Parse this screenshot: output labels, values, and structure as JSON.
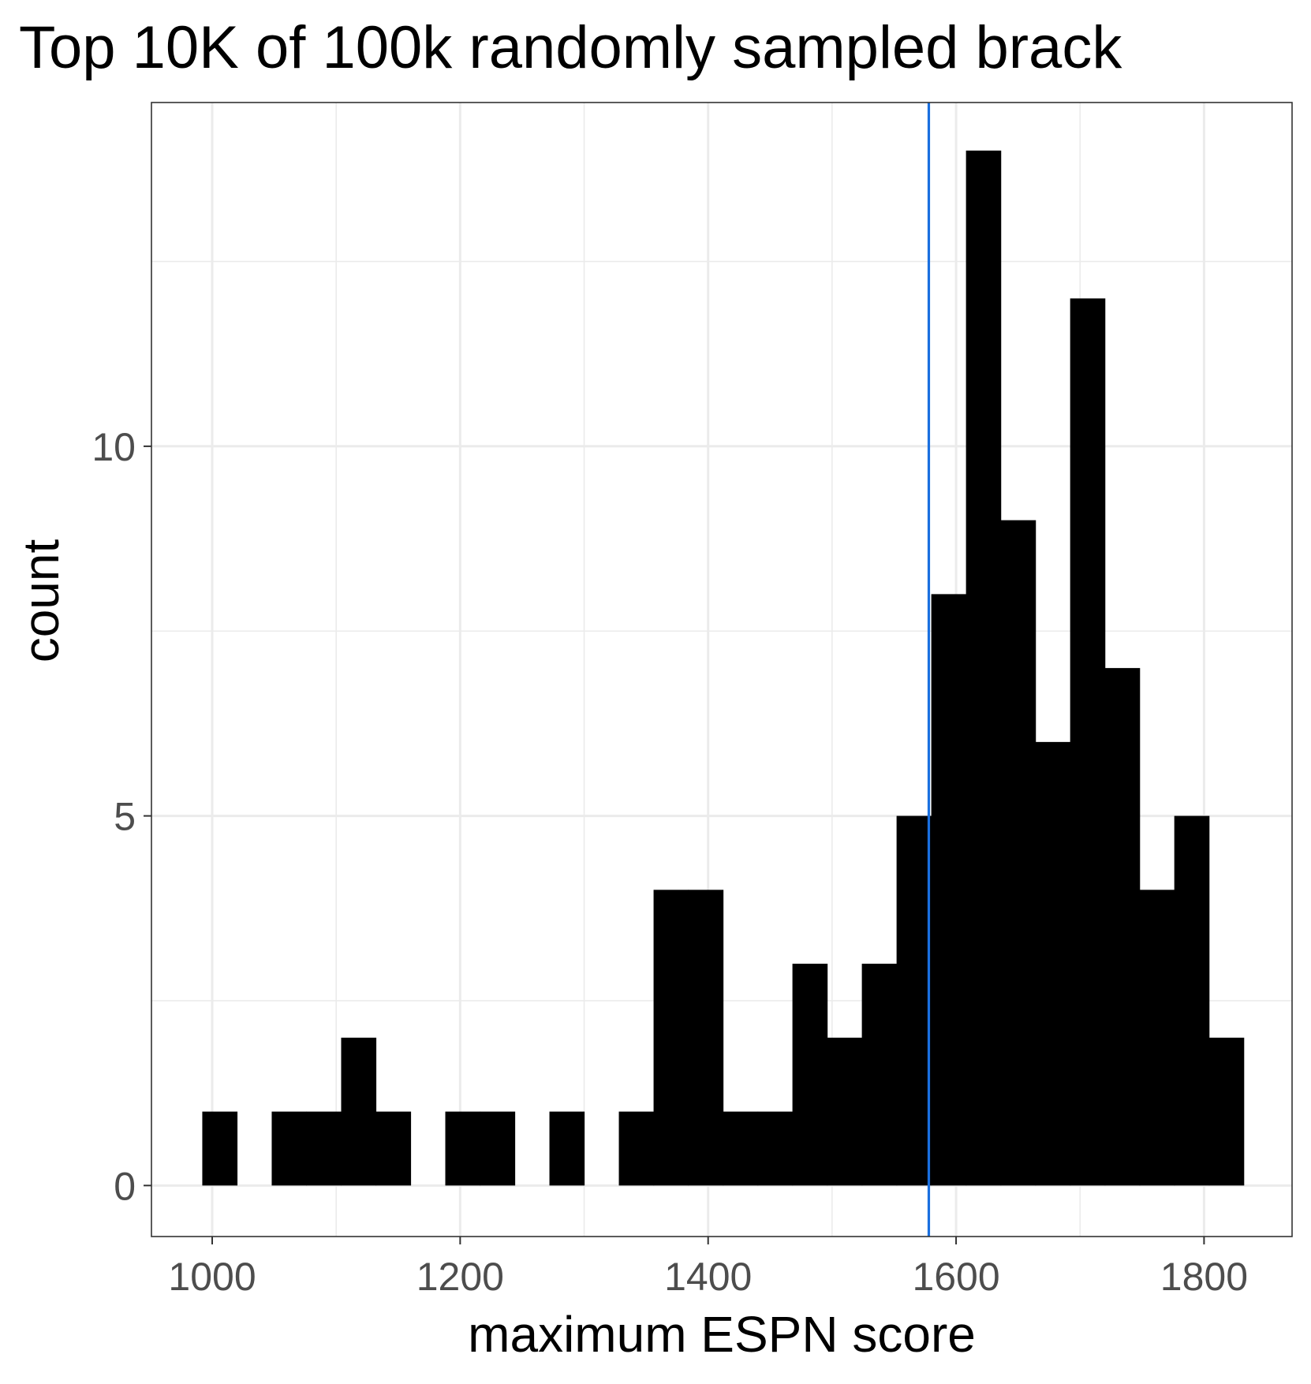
{
  "chart_data": {
    "type": "bar",
    "title": "Top 10K of 100k randomly sampled brack",
    "xlabel": "maximum ESPN score",
    "ylabel": "count",
    "x_ticks": [
      1000,
      1200,
      1400,
      1600,
      1800
    ],
    "y_ticks": [
      0,
      5,
      10
    ],
    "xlim": [
      951,
      1871
    ],
    "ylim": [
      -0.69,
      14.65
    ],
    "grid": true,
    "colors": {
      "bars": "#000000",
      "reference_line": "#1a6fdf",
      "grid": "#ebebeb",
      "panel_border": "#333333"
    },
    "bin_width": 28,
    "bins": [
      {
        "x": 1006,
        "count": 1
      },
      {
        "x": 1034,
        "count": 0
      },
      {
        "x": 1062,
        "count": 1
      },
      {
        "x": 1090,
        "count": 1
      },
      {
        "x": 1118,
        "count": 2
      },
      {
        "x": 1146,
        "count": 1
      },
      {
        "x": 1174,
        "count": 0
      },
      {
        "x": 1202,
        "count": 1
      },
      {
        "x": 1230,
        "count": 1
      },
      {
        "x": 1258,
        "count": 0
      },
      {
        "x": 1286,
        "count": 1
      },
      {
        "x": 1314,
        "count": 0
      },
      {
        "x": 1342,
        "count": 1
      },
      {
        "x": 1370,
        "count": 4
      },
      {
        "x": 1398,
        "count": 4
      },
      {
        "x": 1426,
        "count": 1
      },
      {
        "x": 1454,
        "count": 1
      },
      {
        "x": 1482,
        "count": 3
      },
      {
        "x": 1510,
        "count": 2
      },
      {
        "x": 1538,
        "count": 3
      },
      {
        "x": 1566,
        "count": 5
      },
      {
        "x": 1594,
        "count": 8
      },
      {
        "x": 1622,
        "count": 14
      },
      {
        "x": 1650,
        "count": 9
      },
      {
        "x": 1678,
        "count": 6
      },
      {
        "x": 1706,
        "count": 12
      },
      {
        "x": 1734,
        "count": 7
      },
      {
        "x": 1762,
        "count": 4
      },
      {
        "x": 1790,
        "count": 5
      },
      {
        "x": 1818,
        "count": 2
      }
    ],
    "reference_line_x": 1578
  }
}
